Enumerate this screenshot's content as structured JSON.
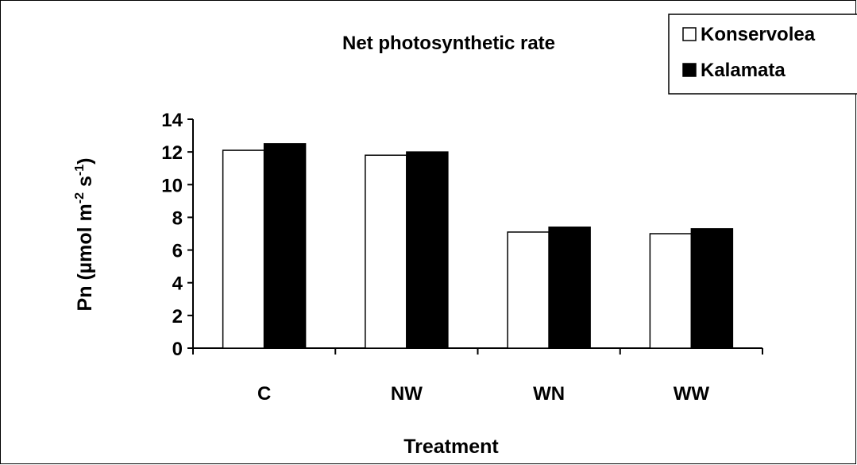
{
  "chart_data": {
    "type": "bar",
    "title": "Net photosynthetic rate",
    "xlabel": "Treatment",
    "ylabel": {
      "prefix": "Pn (µmol m",
      "sup1": "-2",
      "mid": " s",
      "sup2": "-1",
      "suffix": ")"
    },
    "categories": [
      "C",
      "NW",
      "WN",
      "WW"
    ],
    "series": [
      {
        "name": "Konservolea",
        "values": [
          12.1,
          11.8,
          7.1,
          7.0
        ],
        "color": "#ffffff"
      },
      {
        "name": "Kalamata",
        "values": [
          12.5,
          12.0,
          7.4,
          7.3
        ],
        "color": "#000000"
      }
    ],
    "ylim": [
      0,
      14
    ],
    "yticks": [
      0,
      2,
      4,
      6,
      8,
      10,
      12,
      14
    ],
    "grid": false,
    "legend_position": "top-right"
  }
}
